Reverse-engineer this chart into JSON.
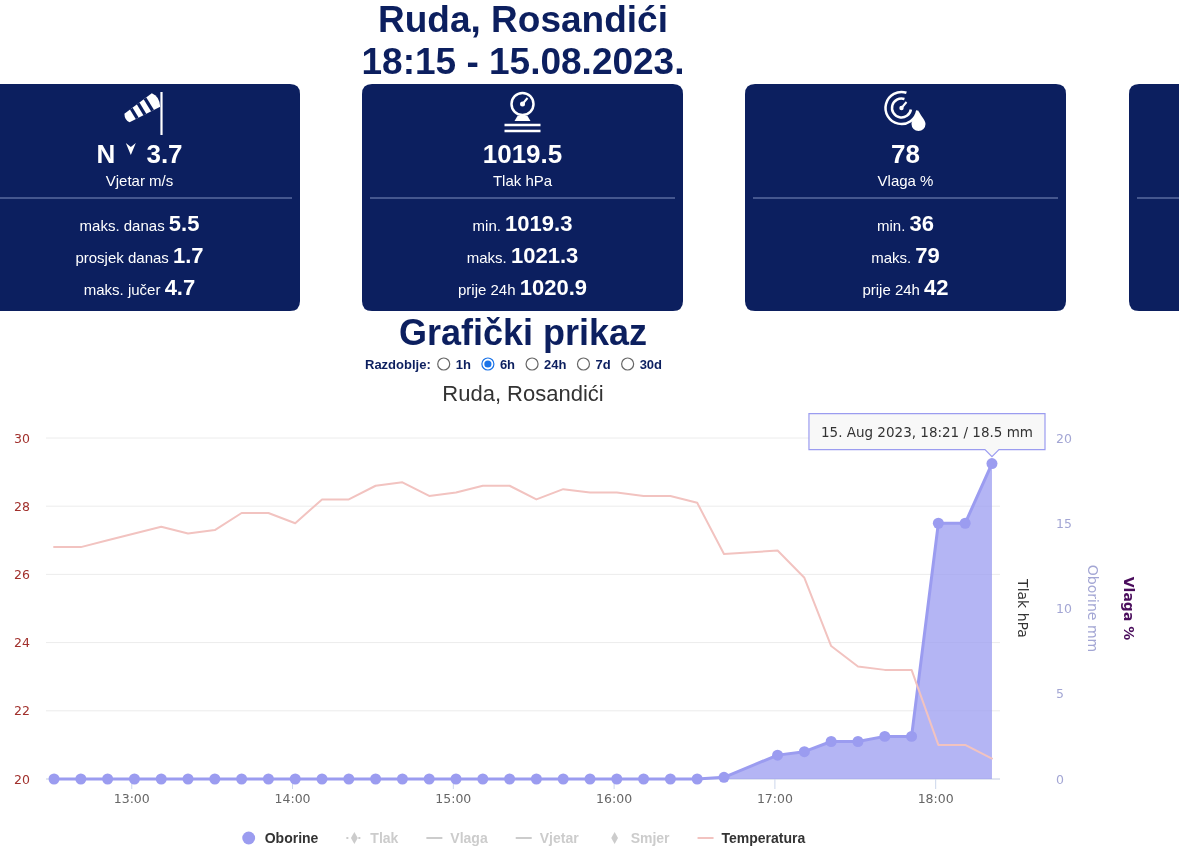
{
  "chart_data": [
    {
      "type": "other",
      "title": "Ruda, Rosandići",
      "subtitle": "18:15 - 15.08.2023."
    },
    {
      "type": "other",
      "title": "N 3.7",
      "subtitle": "Vjetar m/s",
      "annotations": [
        "maks. danas 5.5",
        "prosjek danas 1.7",
        "maks. jučer 4.7"
      ]
    },
    {
      "type": "other",
      "title": "1019.5",
      "subtitle": "Tlak hPa",
      "annotations": [
        "min. 1019.3",
        "maks. 1021.3",
        "prije 24h 1020.9"
      ]
    },
    {
      "type": "other",
      "title": "78",
      "subtitle": "Vlaga %",
      "annotations": [
        "min. 36",
        "maks. 79",
        "prije 24h 42"
      ]
    },
    {
      "type": "other",
      "title": "Grafički prikaz",
      "annotations": [
        "Razdoblje:",
        "1h",
        "6h",
        "24h",
        "7d",
        "30d"
      ]
    },
    {
      "type": "line",
      "title": "Ruda, Rosandići",
      "annotations": [
        "Vlaga %",
        "15. Aug 2023, 18:21 / 18.5 mm"
      ],
      "x": [
        "2023-08-15T12:31",
        "2023-08-15T12:41",
        "2023-08-15T12:51",
        "2023-08-15T13:01",
        "2023-08-15T13:11",
        "2023-08-15T13:21",
        "2023-08-15T13:31",
        "2023-08-15T13:41",
        "2023-08-15T13:51",
        "2023-08-15T14:01",
        "2023-08-15T14:11",
        "2023-08-15T14:21",
        "2023-08-15T14:31",
        "2023-08-15T14:41",
        "2023-08-15T14:51",
        "2023-08-15T15:01",
        "2023-08-15T15:11",
        "2023-08-15T15:21",
        "2023-08-15T15:31",
        "2023-08-15T15:41",
        "2023-08-15T15:51",
        "2023-08-15T16:01",
        "2023-08-15T16:11",
        "2023-08-15T16:21",
        "2023-08-15T16:31",
        "2023-08-15T16:41",
        "2023-08-15T17:01",
        "2023-08-15T17:11",
        "2023-08-15T17:21",
        "2023-08-15T17:31",
        "2023-08-15T17:41",
        "2023-08-15T17:51",
        "2023-08-15T18:01",
        "2023-08-15T18:11",
        "2023-08-15T18:21"
      ],
      "xlim": [
        "2023-08-15T12:28",
        "2023-08-15T18:24"
      ],
      "xticks": [
        {
          "value": "2023-08-15T13:00",
          "label": "13:00"
        },
        {
          "value": "2023-08-15T14:00",
          "label": "14:00"
        },
        {
          "value": "2023-08-15T15:00",
          "label": "15:00"
        },
        {
          "value": "2023-08-15T16:00",
          "label": "16:00"
        },
        {
          "value": "2023-08-15T17:00",
          "label": "17:00"
        },
        {
          "value": "2023-08-15T18:00",
          "label": "18:00"
        }
      ],
      "ylim": [
        20,
        30
      ],
      "yticks": [
        20,
        22,
        24,
        26,
        28,
        30
      ],
      "y2lim": [
        0,
        20
      ],
      "y2ticks": [
        0,
        5,
        10,
        15,
        20
      ],
      "y2label": "Oborine mm",
      "y3label": "Tlak hPa",
      "grid": "y",
      "legend": "bottom",
      "series": [
        {
          "name": "Oborine",
          "type": "area",
          "axis": "y2",
          "marker": "circle",
          "color": "#9b9cf0",
          "values": [
            0,
            0,
            0,
            0,
            0,
            0,
            0,
            0,
            0,
            0,
            0,
            0,
            0,
            0,
            0,
            0,
            0,
            0,
            0,
            0,
            0,
            0,
            0,
            0,
            0,
            0.1,
            1.4,
            1.6,
            2.2,
            2.2,
            2.5,
            2.5,
            15,
            15,
            18.5
          ]
        },
        {
          "name": "Tlak",
          "type": "line",
          "marker": "diamond",
          "line_style": "dotted",
          "color": "#cccccc",
          "values": [
            null,
            null,
            null,
            null,
            null,
            null,
            null,
            null,
            null,
            null,
            null,
            null,
            null,
            null,
            null,
            null,
            null,
            null,
            null,
            null,
            null,
            null,
            null,
            null,
            null,
            null,
            null,
            null,
            null,
            null,
            null,
            null,
            null,
            null,
            null
          ]
        },
        {
          "name": "Vlaga",
          "type": "line",
          "color": "#cccccc",
          "values": [
            null,
            null,
            null,
            null,
            null,
            null,
            null,
            null,
            null,
            null,
            null,
            null,
            null,
            null,
            null,
            null,
            null,
            null,
            null,
            null,
            null,
            null,
            null,
            null,
            null,
            null,
            null,
            null,
            null,
            null,
            null,
            null,
            null,
            null,
            null
          ]
        },
        {
          "name": "Vjetar",
          "type": "line",
          "color": "#cccccc",
          "values": [
            null,
            null,
            null,
            null,
            null,
            null,
            null,
            null,
            null,
            null,
            null,
            null,
            null,
            null,
            null,
            null,
            null,
            null,
            null,
            null,
            null,
            null,
            null,
            null,
            null,
            null,
            null,
            null,
            null,
            null,
            null,
            null,
            null,
            null,
            null
          ]
        },
        {
          "name": "Smjer",
          "type": "scatter",
          "marker": "diamond",
          "color": "#cccccc",
          "values": [
            null,
            null,
            null,
            null,
            null,
            null,
            null,
            null,
            null,
            null,
            null,
            null,
            null,
            null,
            null,
            null,
            null,
            null,
            null,
            null,
            null,
            null,
            null,
            null,
            null,
            null,
            null,
            null,
            null,
            null,
            null,
            null,
            null,
            null,
            null
          ]
        },
        {
          "name": "Temperatura",
          "type": "line",
          "color": "#f2c3c0",
          "values": [
            26.8,
            26.8,
            27.0,
            27.2,
            27.4,
            27.2,
            27.3,
            27.8,
            27.8,
            27.5,
            28.2,
            28.2,
            28.6,
            28.7,
            28.3,
            28.4,
            28.6,
            28.6,
            28.2,
            28.5,
            28.4,
            28.4,
            28.3,
            28.3,
            28.1,
            26.6,
            26.7,
            25.9,
            23.9,
            23.3,
            23.2,
            23.2,
            21.0,
            21.0,
            20.6
          ]
        }
      ]
    }
  ]
}
